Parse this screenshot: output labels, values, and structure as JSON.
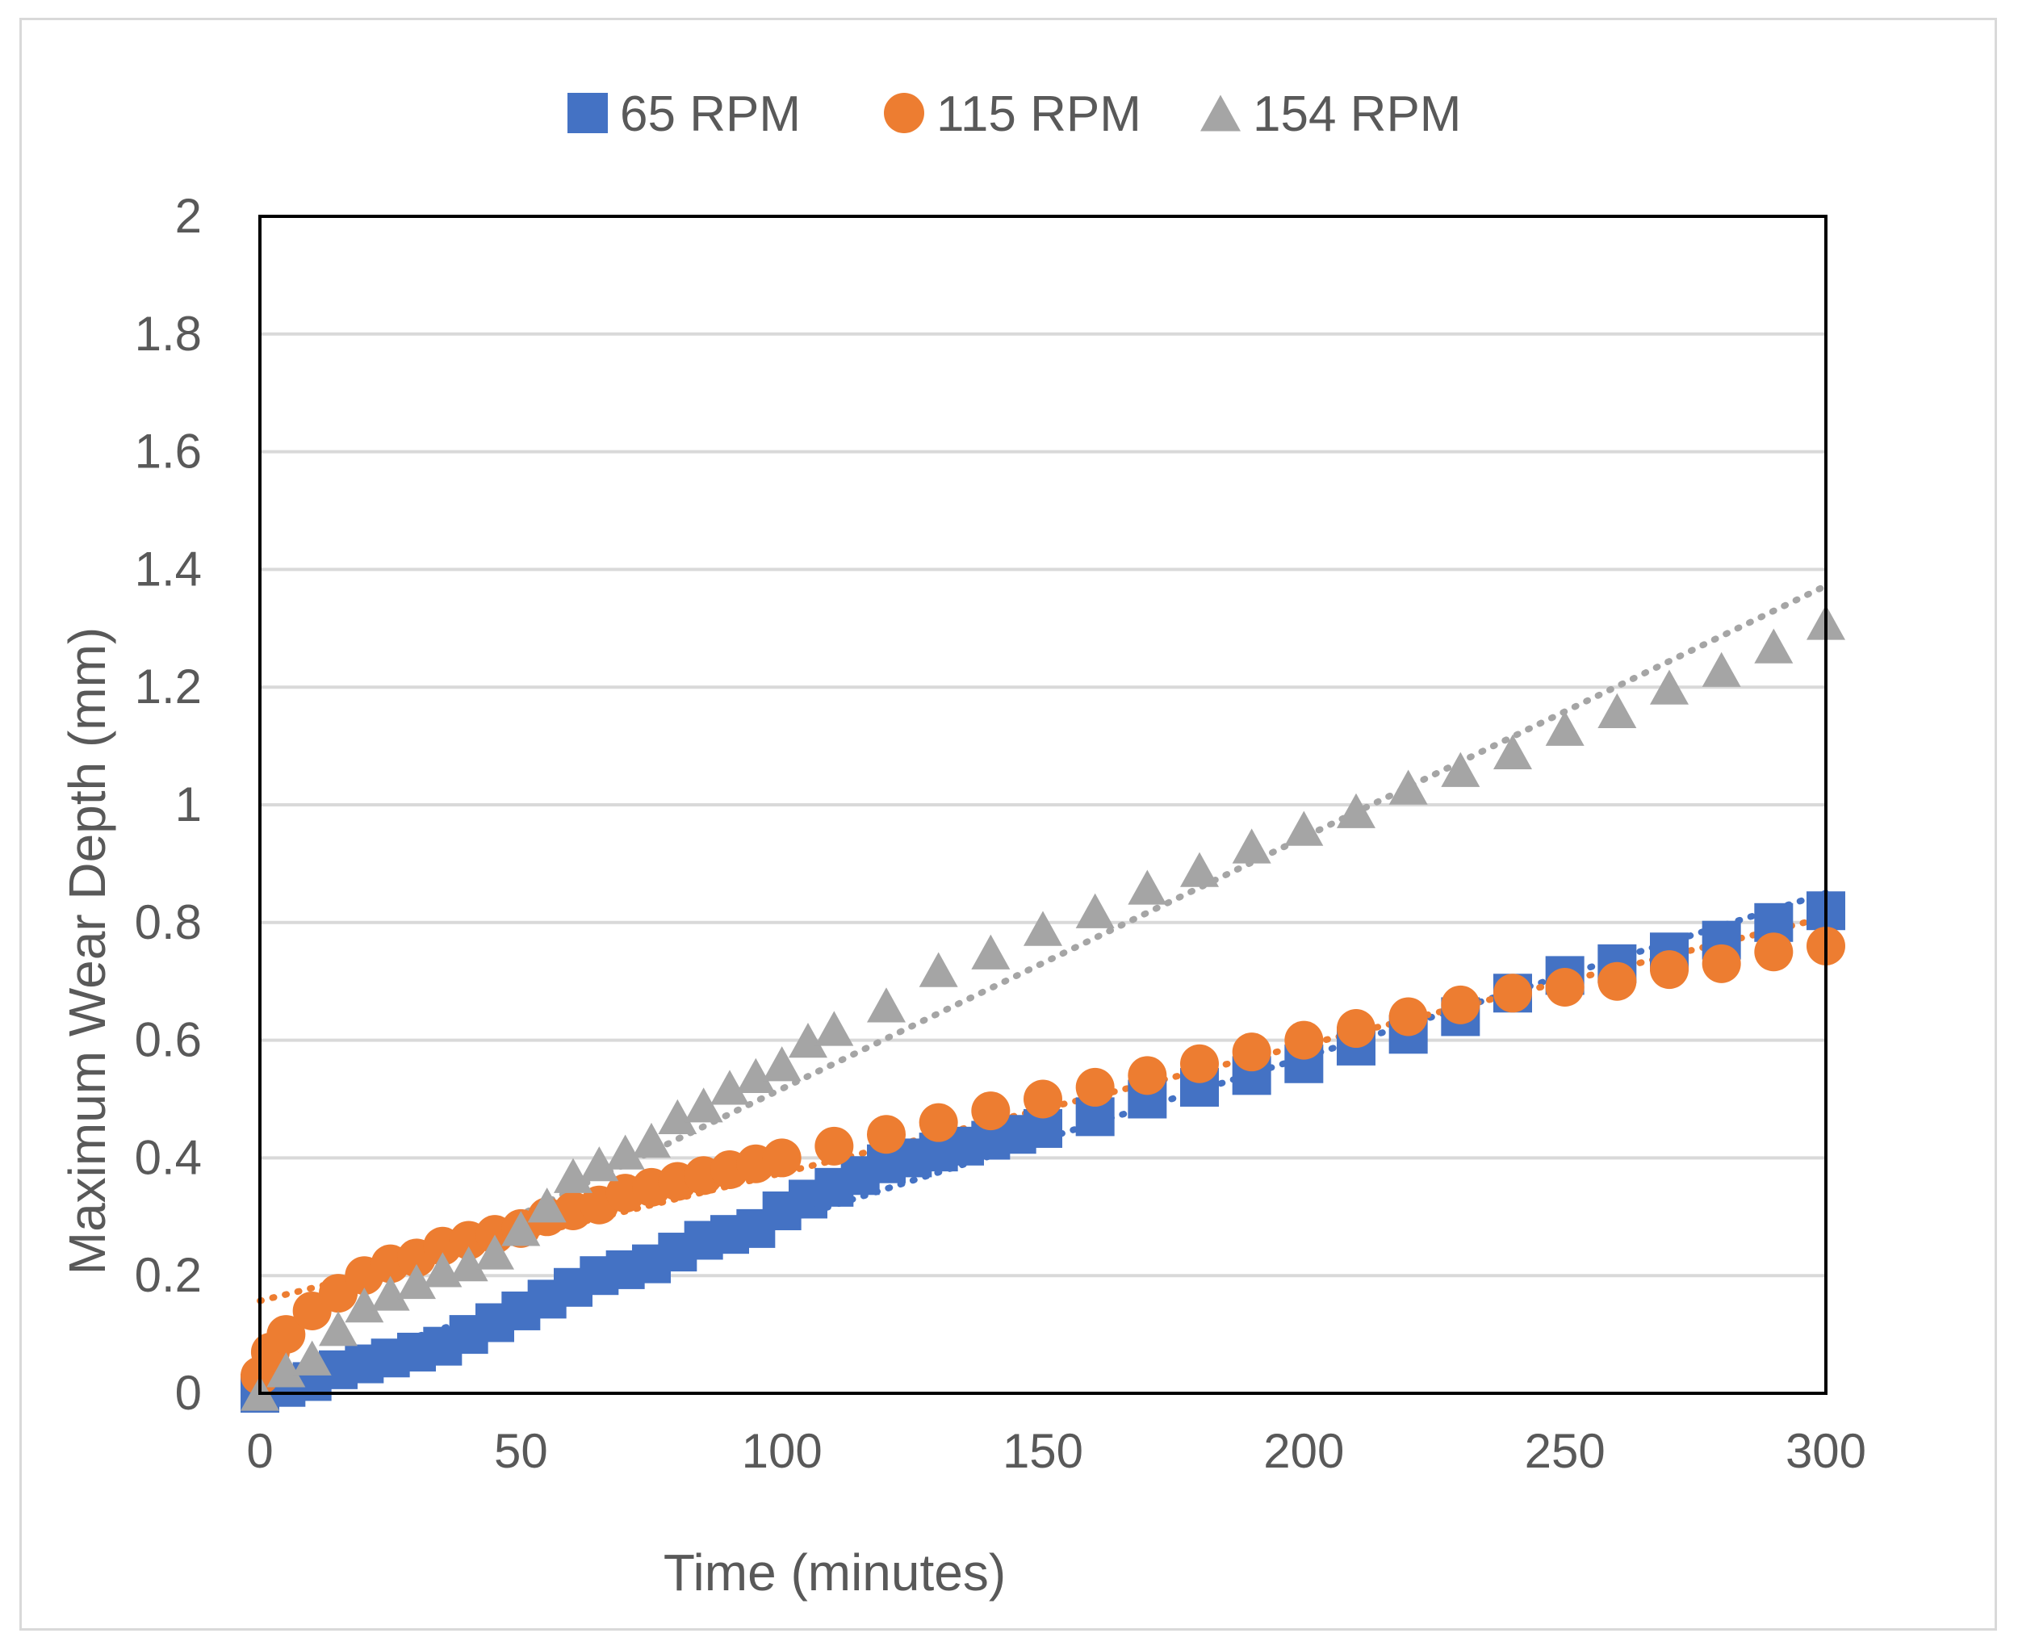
{
  "chart_data": {
    "type": "scatter",
    "title": "",
    "xlabel": "Time (minutes)",
    "ylabel": "Maximum Wear Depth (mm)",
    "xlim": [
      0,
      300
    ],
    "ylim": [
      0,
      2
    ],
    "xticks": [
      "0",
      "50",
      "100",
      "150",
      "200",
      "250",
      "300"
    ],
    "yticks": [
      "0",
      "0.2",
      "0.4",
      "0.6",
      "0.8",
      "1",
      "1.2",
      "1.4",
      "1.6",
      "1.8",
      "2"
    ],
    "grid": "horizontal",
    "legend_position": "top",
    "trendlines": "dotted",
    "series": [
      {
        "name": "65 RPM",
        "marker": "square",
        "color": "#4472c4",
        "x": [
          0,
          5,
          10,
          15,
          20,
          25,
          30,
          35,
          40,
          45,
          50,
          55,
          60,
          65,
          70,
          75,
          80,
          85,
          90,
          95,
          100,
          105,
          110,
          115,
          120,
          125,
          130,
          135,
          140,
          145,
          150,
          160,
          170,
          180,
          190,
          200,
          210,
          220,
          230,
          240,
          250,
          260,
          270,
          280,
          290,
          300
        ],
        "y": [
          0.0,
          0.01,
          0.02,
          0.04,
          0.05,
          0.06,
          0.07,
          0.08,
          0.1,
          0.12,
          0.14,
          0.16,
          0.18,
          0.2,
          0.21,
          0.22,
          0.24,
          0.26,
          0.27,
          0.28,
          0.31,
          0.33,
          0.35,
          0.37,
          0.39,
          0.4,
          0.41,
          0.42,
          0.43,
          0.44,
          0.45,
          0.47,
          0.5,
          0.52,
          0.54,
          0.56,
          0.59,
          0.61,
          0.64,
          0.68,
          0.71,
          0.73,
          0.75,
          0.77,
          0.8,
          0.82
        ]
      },
      {
        "name": "115 RPM",
        "marker": "circle",
        "color": "#ed7d31",
        "x": [
          0,
          2,
          5,
          10,
          15,
          20,
          25,
          30,
          35,
          40,
          45,
          50,
          55,
          60,
          65,
          70,
          75,
          80,
          85,
          90,
          95,
          100,
          110,
          120,
          130,
          140,
          150,
          160,
          170,
          180,
          190,
          200,
          210,
          220,
          230,
          240,
          250,
          260,
          270,
          280,
          290,
          300
        ],
        "y": [
          0.03,
          0.07,
          0.1,
          0.14,
          0.17,
          0.2,
          0.22,
          0.23,
          0.25,
          0.26,
          0.27,
          0.28,
          0.3,
          0.31,
          0.32,
          0.34,
          0.35,
          0.36,
          0.37,
          0.38,
          0.39,
          0.4,
          0.42,
          0.44,
          0.46,
          0.48,
          0.5,
          0.52,
          0.54,
          0.56,
          0.58,
          0.6,
          0.62,
          0.64,
          0.66,
          0.68,
          0.69,
          0.7,
          0.72,
          0.73,
          0.75,
          0.76
        ]
      },
      {
        "name": "154 RPM",
        "marker": "triangle",
        "color": "#a5a5a5",
        "x": [
          0,
          5,
          10,
          15,
          20,
          25,
          30,
          35,
          40,
          45,
          50,
          55,
          60,
          65,
          70,
          75,
          80,
          85,
          90,
          95,
          100,
          105,
          110,
          120,
          130,
          140,
          150,
          160,
          170,
          180,
          190,
          200,
          210,
          220,
          230,
          240,
          250,
          260,
          270,
          280,
          290,
          300
        ],
        "y": [
          0.0,
          0.04,
          0.06,
          0.11,
          0.15,
          0.17,
          0.19,
          0.21,
          0.22,
          0.24,
          0.28,
          0.32,
          0.37,
          0.39,
          0.41,
          0.43,
          0.47,
          0.49,
          0.52,
          0.54,
          0.56,
          0.6,
          0.62,
          0.66,
          0.72,
          0.75,
          0.79,
          0.82,
          0.86,
          0.89,
          0.93,
          0.96,
          0.99,
          1.03,
          1.06,
          1.09,
          1.13,
          1.16,
          1.2,
          1.23,
          1.27,
          1.31
        ]
      }
    ]
  }
}
